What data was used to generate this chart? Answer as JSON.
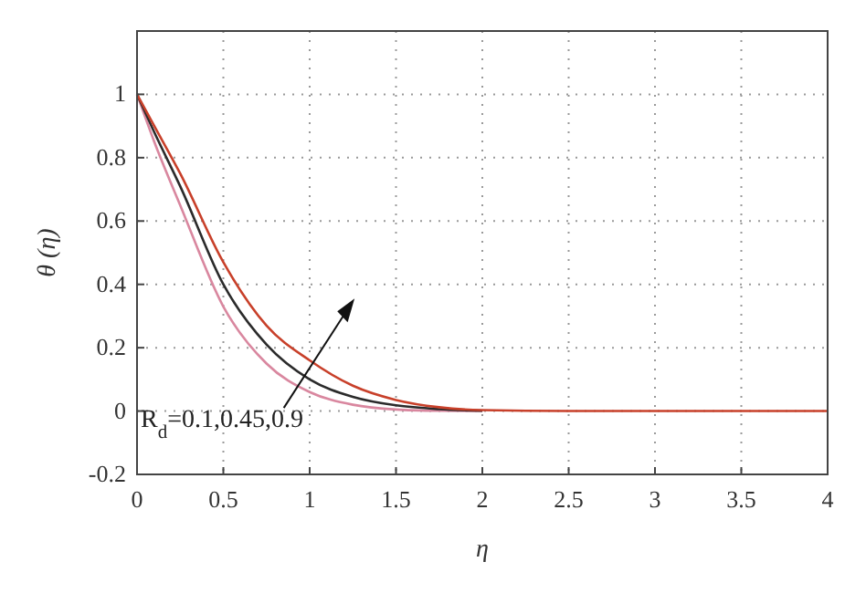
{
  "chart_data": {
    "type": "line",
    "xlabel": "η",
    "ylabel": "θ (η)",
    "x": [
      0,
      0.1,
      0.25,
      0.5,
      0.75,
      1,
      1.25,
      1.5,
      1.75,
      2,
      2.5,
      3,
      3.5,
      4
    ],
    "series": [
      {
        "color": "#d9879f",
        "values": [
          1,
          0.85,
          0.65,
          0.33,
          0.15,
          0.06,
          0.02,
          0.005,
          0.001,
          0,
          null,
          null,
          null,
          null
        ]
      },
      {
        "color": "#2b2b2b",
        "values": [
          1,
          0.88,
          0.71,
          0.4,
          0.21,
          0.1,
          0.045,
          0.018,
          0.006,
          0.001,
          null,
          null,
          null,
          null
        ]
      },
      {
        "color": "#c8402a",
        "values": [
          1,
          0.9,
          0.75,
          0.47,
          0.27,
          0.16,
          0.08,
          0.035,
          0.012,
          0.003,
          0,
          0,
          0,
          0
        ]
      }
    ],
    "xlim": [
      0,
      4
    ],
    "xticks": [
      0,
      0.5,
      1,
      1.5,
      2,
      2.5,
      3,
      3.5,
      4
    ],
    "ylim": [
      -0.2,
      1.2
    ],
    "yticks": [
      -0.2,
      0,
      0.2,
      0.4,
      0.6,
      0.8,
      1
    ],
    "grid": true,
    "line_style": "solid",
    "annotations": [
      "R$_{d}$=0.1,0.45,0.9"
    ]
  }
}
